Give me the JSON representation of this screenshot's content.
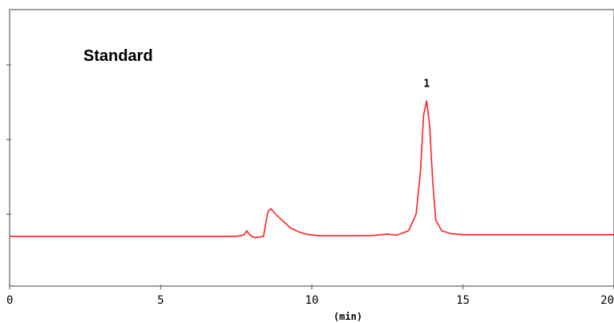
{
  "chart_data": {
    "type": "line",
    "title": "Standard",
    "xlabel": "(min)",
    "ylabel": "",
    "xlim": [
      0,
      20
    ],
    "ylim": [
      0,
      100
    ],
    "x_ticks": [
      0,
      5,
      10,
      15,
      20
    ],
    "x_tick_labels": [
      "0",
      "5",
      "10",
      "15",
      "20"
    ],
    "y_ticks": [
      26,
      53,
      80
    ],
    "grid": false,
    "legend": "none",
    "line_color": "#ff2020",
    "axis_color": "#808080",
    "series": [
      {
        "x": [
          0,
          7.5,
          7.75,
          7.85,
          7.95,
          8.1,
          8.4,
          8.55,
          8.65,
          8.8,
          9.0,
          9.3,
          9.6,
          9.9,
          10.3,
          11.0,
          12.0,
          12.5,
          12.8,
          13.2,
          13.45,
          13.6,
          13.7,
          13.8,
          13.9,
          14.0,
          14.1,
          14.3,
          14.6,
          15.0,
          20
        ],
        "y": [
          18,
          18,
          18.5,
          20,
          18.5,
          17.5,
          18,
          27,
          28,
          26,
          24,
          21,
          19.5,
          18.6,
          18.2,
          18.2,
          18.3,
          18.8,
          18.4,
          20,
          26,
          42,
          62,
          67,
          58,
          38,
          24,
          20,
          19,
          18.6,
          18.6
        ]
      }
    ],
    "annotations": [
      {
        "text": "1",
        "x": 13.8,
        "y": 72
      }
    ]
  }
}
